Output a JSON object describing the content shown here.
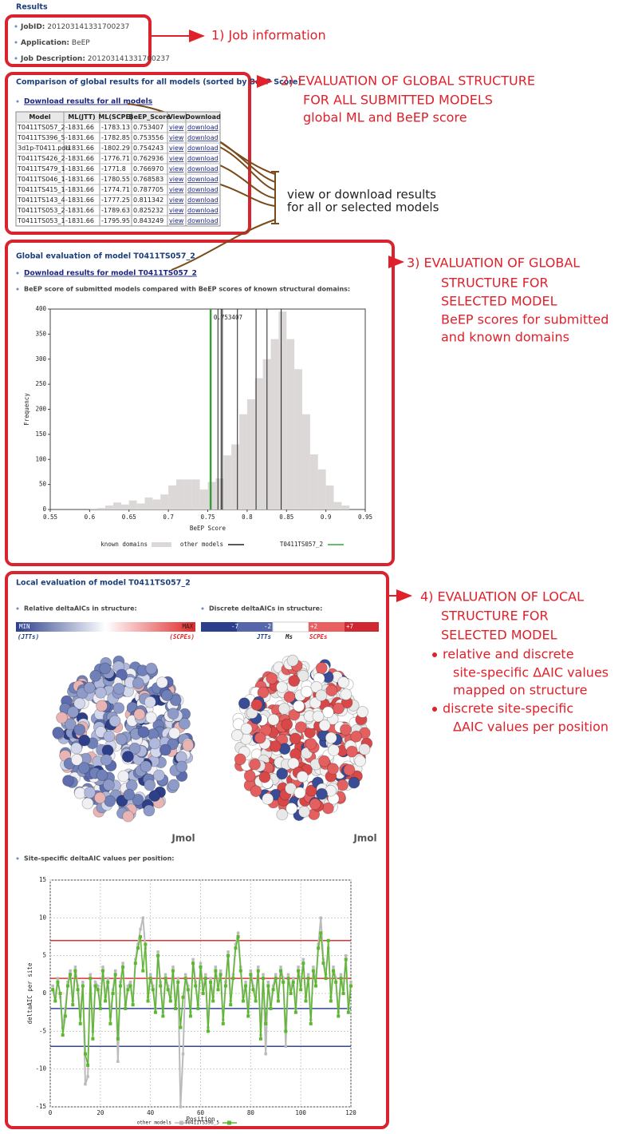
{
  "results_title": "Results",
  "job": {
    "items": [
      {
        "label": "JobID:",
        "value": "201203141331700237"
      },
      {
        "label": "Application:",
        "value": "BeEP"
      },
      {
        "label": "Job Description:",
        "value": "201203141331700237"
      }
    ]
  },
  "global": {
    "title": "Comparison of global results for all models (sorted by BeEP Score)",
    "download": "Download results for all models",
    "table": {
      "columns": [
        "Model",
        "ML(JTT)",
        "ML(SCPE)",
        "BeEP_Score",
        "View",
        "Download"
      ],
      "rows": [
        [
          "T0411TS057_2",
          "-1831.66",
          "-1783.13",
          "0.753407",
          "view",
          "download"
        ],
        [
          "T0411TS396_5",
          "-1831.66",
          "-1782.85",
          "0.753556",
          "view",
          "download"
        ],
        [
          "3d1p-T0411.pdb",
          "-1831.66",
          "-1802.29",
          "0.754243",
          "view",
          "download"
        ],
        [
          "T0411TS426_2",
          "-1831.66",
          "-1776.71",
          "0.762936",
          "view",
          "download"
        ],
        [
          "T0411TS479_1",
          "-1831.66",
          "-1771.8",
          "0.766970",
          "view",
          "download"
        ],
        [
          "T0411TS046_1",
          "-1831.66",
          "-1780.55",
          "0.768583",
          "view",
          "download"
        ],
        [
          "T0411TS415_1",
          "-1831.66",
          "-1774.71",
          "0.787705",
          "view",
          "download"
        ],
        [
          "T0411TS143_4",
          "-1831.66",
          "-1777.25",
          "0.811342",
          "view",
          "download"
        ],
        [
          "T0411TS053_2",
          "-1831.66",
          "-1789.63",
          "0.825232",
          "view",
          "download"
        ],
        [
          "T0411TS053_1",
          "-1831.66",
          "-1795.95",
          "0.843249",
          "view",
          "download"
        ]
      ]
    }
  },
  "model_eval": {
    "title": "Global evaluation of model T0411TS057_2",
    "download": "Download results for model T0411TS057_2",
    "caption": "BeEP score of submitted models compared with BeEP scores of known structural domains:"
  },
  "local": {
    "title": "Local evaluation of model T0411TS057_2",
    "relative_caption": "Relative deltaAICs in structure:",
    "discrete_caption": "Discrete deltaAICs in structure:",
    "relative_scale": {
      "min": "MIN",
      "max": "MAX",
      "left": "(JTTs)",
      "right": "(SCPEs)"
    },
    "discrete_scale": {
      "ticks": [
        "-7",
        "-2",
        "+2",
        "+7"
      ],
      "labels": [
        "JTTs",
        "Ms",
        "SCPEs"
      ]
    },
    "viewer_labels": [
      "Jmol",
      "Jmol"
    ],
    "position_caption": "Site-specific deltaAIC values per position:"
  },
  "annotations": {
    "job": "1)  Job information",
    "global": [
      "2)  EVALUATION OF GLOBAL STRUCTURE",
      "FOR ALL SUBMITTED MODELS",
      "global ML and BeEP score"
    ],
    "links": [
      "view or download results",
      "for all or selected models"
    ],
    "model": [
      "3)  EVALUATION OF GLOBAL",
      "STRUCTURE FOR",
      "SELECTED MODEL",
      "BeEP scores for submitted",
      "and known domains"
    ],
    "local": [
      "4)  EVALUATION OF LOCAL",
      "STRUCTURE FOR",
      "SELECTED MODEL"
    ],
    "local_bullets": [
      [
        "relative and discrete",
        "site-specific ΔAIC values",
        "mapped on structure"
      ],
      [
        "discrete site-specific",
        "ΔAIC values per position"
      ]
    ]
  },
  "chart_data": [
    {
      "type": "histogram",
      "xlabel": "BeEP Score",
      "ylabel": "Frequency",
      "bins": [
        0.6,
        0.61,
        0.62,
        0.63,
        0.64,
        0.65,
        0.66,
        0.67,
        0.68,
        0.69,
        0.7,
        0.71,
        0.72,
        0.73,
        0.74,
        0.75,
        0.76,
        0.77,
        0.78,
        0.79,
        0.8,
        0.81,
        0.82,
        0.83,
        0.84,
        0.85,
        0.86,
        0.87,
        0.88,
        0.89,
        0.9,
        0.91,
        0.92,
        0.93
      ],
      "series": [
        {
          "name": "known domains",
          "color": "#dcd8d8",
          "values": [
            2,
            3,
            8,
            14,
            10,
            18,
            12,
            24,
            20,
            30,
            48,
            60,
            60,
            60,
            40,
            55,
            62,
            108,
            130,
            190,
            220,
            262,
            300,
            340,
            395,
            340,
            280,
            190,
            110,
            80,
            48,
            15,
            8
          ]
        }
      ],
      "vlines": [
        {
          "name": "other models",
          "color": "#222222",
          "x": [
            0.753556,
            0.754243,
            0.762936,
            0.76697,
            0.768583,
            0.787705,
            0.811342,
            0.825232,
            0.843249
          ]
        },
        {
          "name": "T0411TS057_2",
          "color": "#33aa33",
          "x": [
            0.753407
          ]
        }
      ],
      "xlim": [
        0.55,
        0.95
      ],
      "xticks": [
        0.55,
        0.6,
        0.65,
        0.7,
        0.75,
        0.8,
        0.85,
        0.9,
        0.95
      ],
      "ylim": [
        0,
        400
      ],
      "yticks": [
        0,
        50,
        100,
        150,
        200,
        250,
        300,
        350,
        400
      ],
      "grid": false
    },
    {
      "type": "line",
      "xlabel": "Position",
      "ylabel": "deltaAIC per site",
      "x": [
        1,
        2,
        3,
        4,
        5,
        6,
        7,
        8,
        9,
        10,
        11,
        12,
        13,
        14,
        15,
        16,
        17,
        18,
        19,
        20,
        21,
        22,
        23,
        24,
        25,
        26,
        27,
        28,
        29,
        30,
        31,
        32,
        33,
        34,
        35,
        36,
        37,
        38,
        39,
        40,
        41,
        42,
        43,
        44,
        45,
        46,
        47,
        48,
        49,
        50,
        51,
        52,
        53,
        54,
        55,
        56,
        57,
        58,
        59,
        60,
        61,
        62,
        63,
        64,
        65,
        66,
        67,
        68,
        69,
        70,
        71,
        72,
        73,
        74,
        75,
        76,
        77,
        78,
        79,
        80,
        81,
        82,
        83,
        84,
        85,
        86,
        87,
        88,
        89,
        90,
        91,
        92,
        93,
        94,
        95,
        96,
        97,
        98,
        99,
        100,
        101,
        102,
        103,
        104,
        105,
        106,
        107,
        108,
        109,
        110,
        111,
        112,
        113,
        114,
        115,
        116,
        117,
        118,
        119,
        120
      ],
      "series": [
        {
          "name": "other models",
          "color": "#bbbbbb",
          "values": [
            1,
            -0.5,
            2,
            -0.5,
            -4.5,
            -2,
            1.5,
            3,
            -1,
            3.5,
            1,
            -3,
            1.5,
            -12,
            -11,
            2.5,
            -5,
            1.5,
            1,
            -1.5,
            3.5,
            -0.5,
            2,
            -3,
            0.5,
            3,
            -9,
            1.5,
            4,
            -1.5,
            1,
            1.5,
            -1,
            4.5,
            6.5,
            8.5,
            10,
            6,
            -0.5,
            2.5,
            1,
            -2,
            5.5,
            1.5,
            -2.5,
            2.5,
            1,
            -0.5,
            3.5,
            -1.5,
            2,
            -15,
            -8,
            2.5,
            1,
            -2.5,
            4.5,
            1.5,
            -1.5,
            4,
            0.5,
            2.5,
            -4.5,
            2,
            -0.5,
            3.5,
            1,
            3,
            -3.5,
            1.5,
            5.5,
            -1,
            2.5,
            6.5,
            8,
            3.5,
            -0.5,
            1.5,
            -2.5,
            3,
            1,
            -0.5,
            3.5,
            -5.5,
            2.5,
            -8,
            1.5,
            -1.5,
            1,
            2.5,
            -0.5,
            3.5,
            2,
            -7,
            2.5,
            0.5,
            2,
            -2,
            3.5,
            1,
            4.5,
            -0.5,
            2.5,
            -3.5,
            3.5,
            1.5,
            6.5,
            10,
            4.5,
            2.5,
            6,
            -0.5,
            3.5,
            2,
            -2.5,
            2.5,
            0.5,
            5,
            -2,
            1.5
          ]
        },
        {
          "name": "T0411TS396_5",
          "color": "#5cb82e",
          "values": [
            0.5,
            -1,
            1.5,
            0,
            -5.5,
            -3,
            1,
            2.5,
            -1.5,
            3,
            0.5,
            -4,
            1,
            -8,
            -9.5,
            2,
            -6,
            1,
            0.5,
            -2,
            3,
            -1,
            1.5,
            -4,
            0,
            2.5,
            -6,
            1,
            3.5,
            -2,
            0.5,
            1,
            -1.5,
            4,
            6,
            7.5,
            3,
            6.5,
            -1,
            2,
            0.5,
            -2.5,
            5,
            1,
            -3,
            2,
            0.5,
            -1,
            3,
            -2,
            1.5,
            -4.5,
            -0.5,
            2,
            0.5,
            -3,
            4,
            1,
            -2,
            3.5,
            0,
            2,
            -5,
            1.5,
            -1,
            3,
            0.5,
            2.5,
            -4,
            1,
            5,
            -1.5,
            2,
            6,
            7.5,
            3,
            -1,
            1,
            -3,
            2.5,
            0.5,
            -1,
            3,
            -6,
            2,
            -4,
            1,
            -2,
            0.5,
            2,
            -1,
            3,
            1.5,
            -5,
            2,
            0,
            1.5,
            -2.5,
            3,
            0.5,
            4,
            -1,
            2,
            -4,
            3,
            1,
            6,
            8,
            4,
            2,
            7,
            -1,
            3,
            1.5,
            -3,
            2,
            0,
            4.5,
            -2.5,
            1
          ]
        }
      ],
      "reference_lines": [
        {
          "value": 7,
          "color": "#dd3333"
        },
        {
          "value": 2,
          "color": "#dd3333"
        },
        {
          "value": -2,
          "color": "#334499"
        },
        {
          "value": -7,
          "color": "#334499"
        }
      ],
      "xlim": [
        0,
        120
      ],
      "xticks": [
        0,
        20,
        40,
        60,
        80,
        100,
        120
      ],
      "ylim": [
        -15,
        15
      ],
      "yticks": [
        -15,
        -10,
        -5,
        0,
        5,
        10,
        15
      ],
      "grid": true
    }
  ]
}
